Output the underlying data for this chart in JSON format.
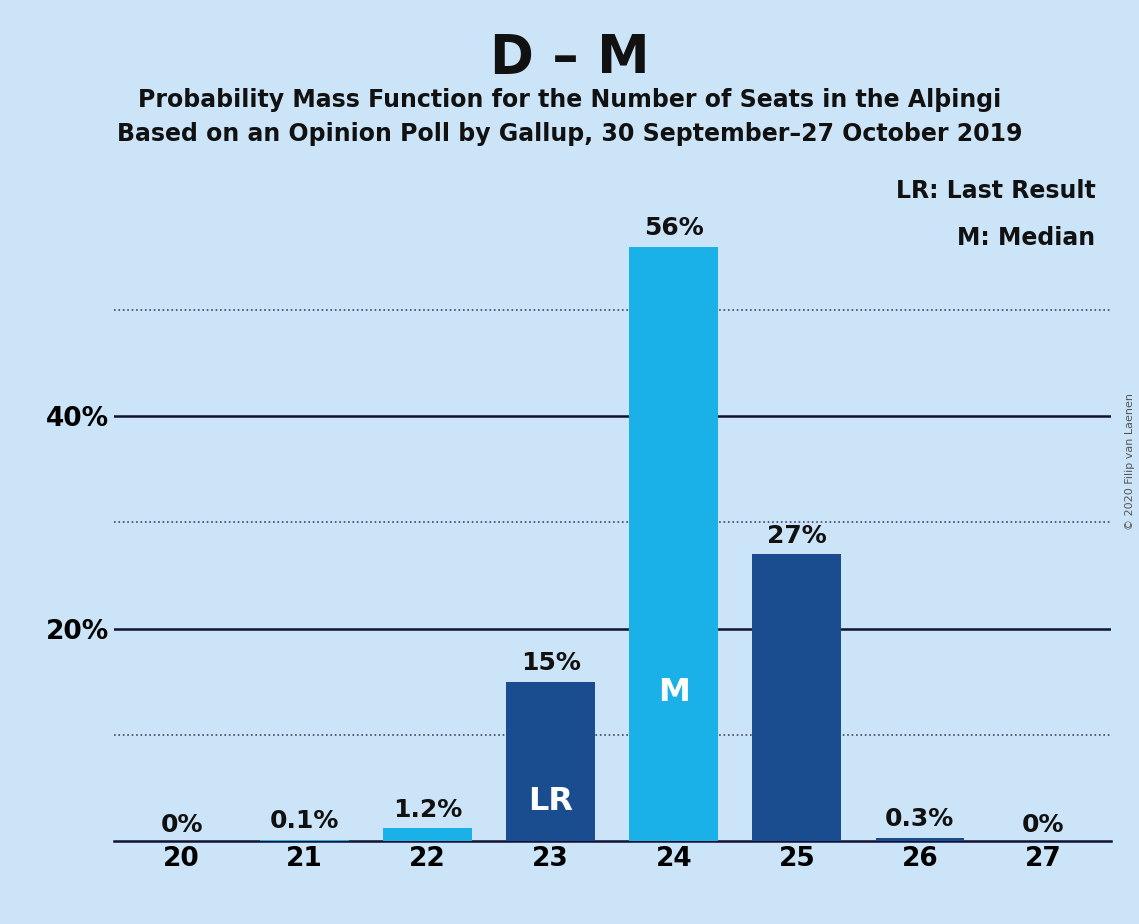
{
  "title": "D – M",
  "subtitle1": "Probability Mass Function for the Number of Seats in the Alþingi",
  "subtitle2": "Based on an Opinion Poll by Gallup, 30 September–27 October 2019",
  "categories": [
    20,
    21,
    22,
    23,
    24,
    25,
    26,
    27
  ],
  "values": [
    0.0,
    0.1,
    1.2,
    15.0,
    56.0,
    27.0,
    0.3,
    0.0
  ],
  "bar_colors": [
    "#1ab0e8",
    "#1ab0e8",
    "#1ab0e8",
    "#1a4d8f",
    "#1ab0e8",
    "#1a4d8f",
    "#1a4d8f",
    "#1a4d8f"
  ],
  "label_texts": [
    "0%",
    "0.1%",
    "1.2%",
    "15%",
    "56%",
    "27%",
    "0.3%",
    "0%"
  ],
  "special_labels": {
    "23": "LR",
    "24": "M"
  },
  "special_label_colors": {
    "23": "white",
    "24": "white"
  },
  "legend_text1": "LR: Last Result",
  "legend_text2": "M: Median",
  "background_color": "#cce4f7",
  "plot_background_color": "#cce4f7",
  "title_fontsize": 38,
  "subtitle_fontsize": 17,
  "tick_fontsize": 19,
  "label_fontsize": 18,
  "legend_fontsize": 17,
  "ylim": [
    0,
    64
  ],
  "solid_lines": [
    20,
    40
  ],
  "dotted_lines": [
    10,
    30,
    50
  ],
  "ytick_labels": [
    "20%",
    "40%"
  ],
  "ytick_values": [
    20,
    40
  ],
  "copyright_text": "© 2020 Filip van Laenen",
  "bar_width": 0.72
}
